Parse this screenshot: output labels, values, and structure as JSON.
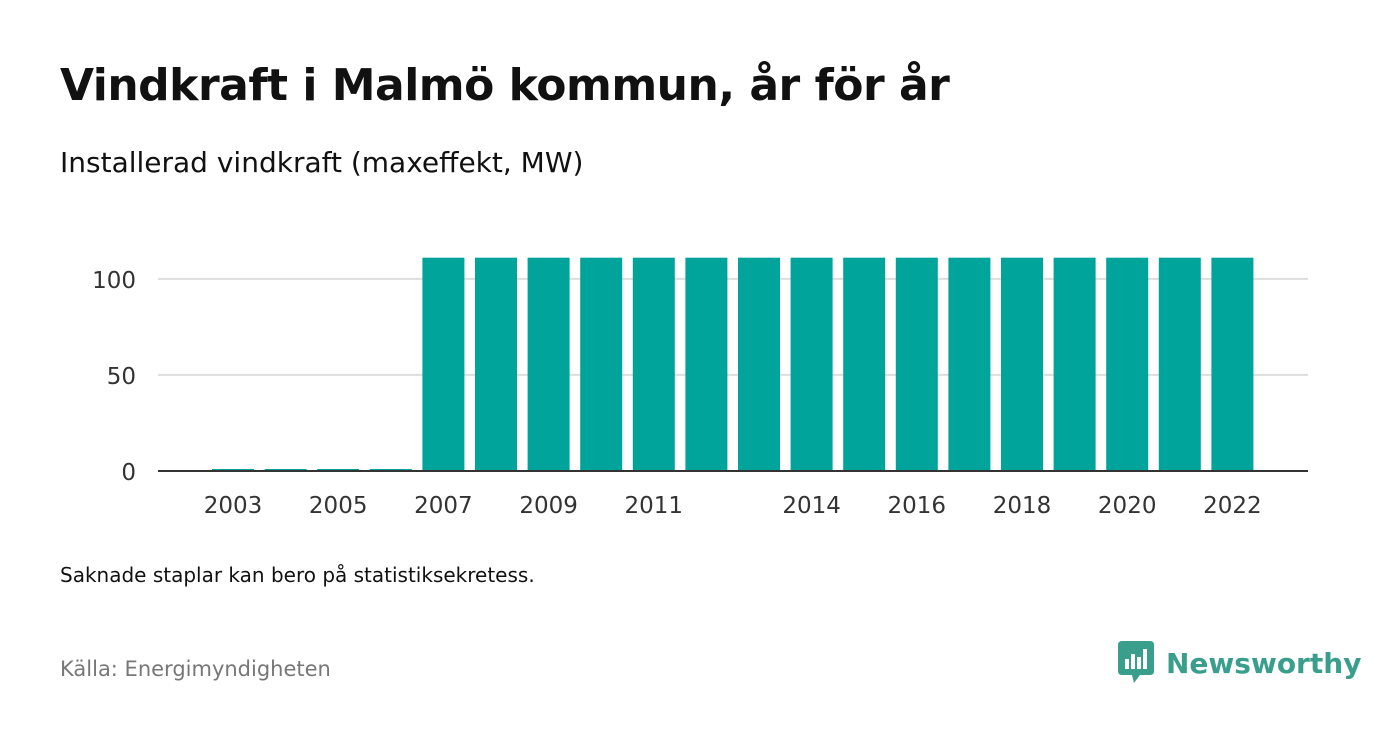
{
  "title": "Vindkraft i Malmö kommun, år för år",
  "subtitle": "Installerad vindkraft (maxeffekt, MW)",
  "note": "Saknade staplar kan bero på statistiksekretess.",
  "source": "Källa: Energimyndigheten",
  "brand": {
    "name": "Newsworthy",
    "color": "#3a9e8d",
    "icon": "newsworthy-logo-icon"
  },
  "colors": {
    "bar": "#00a49a",
    "grid": "#dddddd",
    "axis": "#333333",
    "text": "#333333"
  },
  "chart_data": {
    "type": "bar",
    "categories": [
      "2002",
      "2003",
      "2004",
      "2005",
      "2006",
      "2007",
      "2008",
      "2009",
      "2010",
      "2011",
      "2012",
      "2013",
      "2014",
      "2015",
      "2016",
      "2017",
      "2018",
      "2019",
      "2020",
      "2021",
      "2022",
      "2023"
    ],
    "x_tick_labels": [
      "",
      "2003",
      "",
      "2005",
      "",
      "2007",
      "",
      "2009",
      "",
      "2011",
      "",
      "",
      "2014",
      "",
      "2016",
      "",
      "2018",
      "",
      "2020",
      "",
      "2022",
      ""
    ],
    "series": [
      {
        "values": [
          0,
          0.5,
          0.5,
          0.5,
          0.5,
          111,
          111,
          111,
          111,
          111,
          111,
          111,
          111,
          111,
          111,
          111,
          111,
          111,
          111,
          111,
          111,
          null
        ]
      }
    ],
    "y_ticks": [
      0,
      50,
      100
    ],
    "ylim": [
      0,
      115
    ],
    "xlabel": "",
    "ylabel": "",
    "grid": true,
    "legend": "none"
  }
}
